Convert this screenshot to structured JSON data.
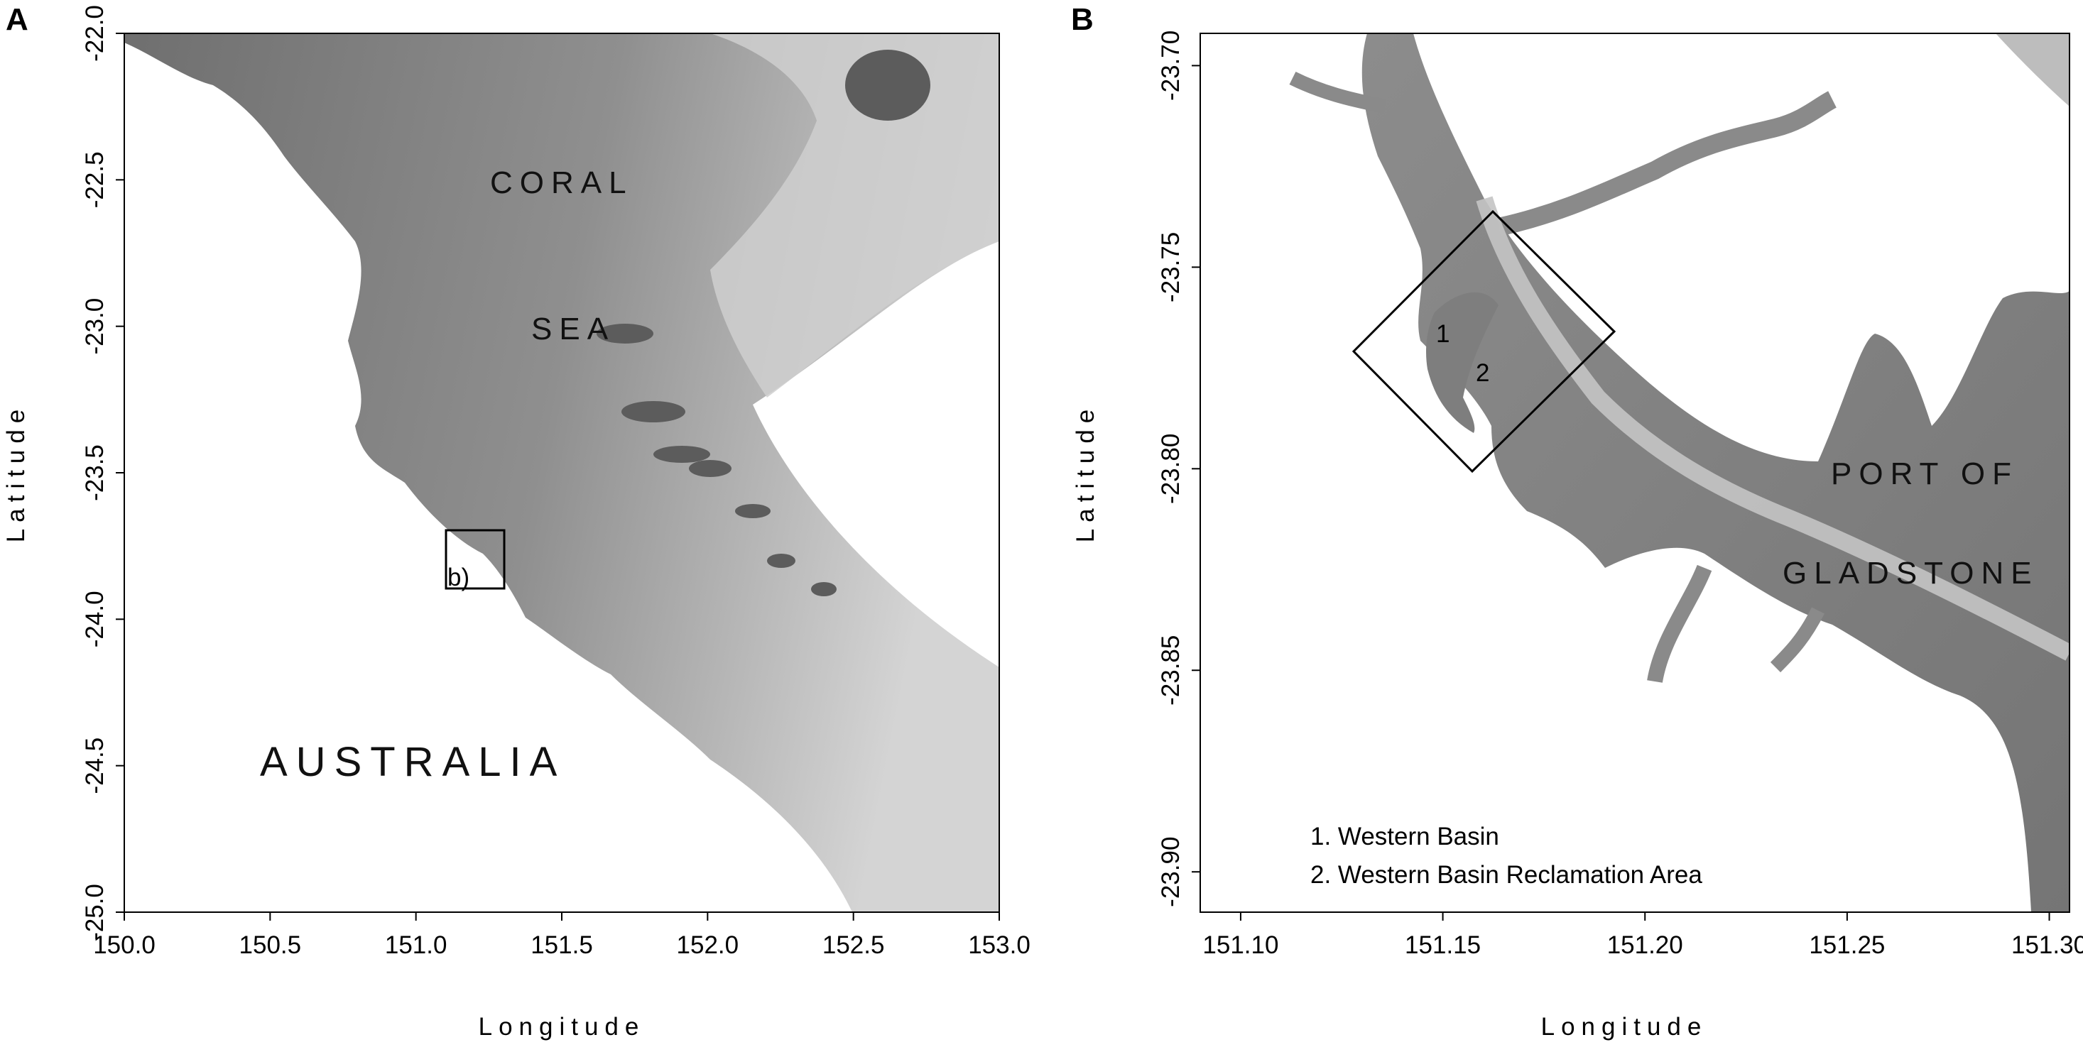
{
  "panels": [
    {
      "letter": "A",
      "xlabel": "Longitude",
      "ylabel": "Latitude",
      "xlim": [
        150.0,
        153.0
      ],
      "ylim": [
        -25.0,
        -22.0
      ],
      "xticks": [
        "150.0",
        "150.5",
        "151.0",
        "151.5",
        "152.0",
        "152.5",
        "153.0"
      ],
      "yticks": [
        "-22.0",
        "-22.5",
        "-23.0",
        "-23.5",
        "-24.0",
        "-24.5",
        "-25.0"
      ],
      "place_labels": [
        "CORAL",
        "SEA",
        "AUSTRALIA"
      ],
      "inset_label": "b)",
      "inset_box": {
        "lon": [
          151.1,
          151.3
        ],
        "lat": [
          -23.9,
          -23.7
        ]
      }
    },
    {
      "letter": "B",
      "xlabel": "Longitude",
      "ylabel": "Latitude",
      "xlim": [
        151.09,
        151.305
      ],
      "ylim": [
        -23.91,
        -23.692
      ],
      "xticks": [
        "151.10",
        "151.15",
        "151.20",
        "151.25",
        "151.30"
      ],
      "yticks": [
        "-23.70",
        "-23.75",
        "-23.80",
        "-23.85",
        "-23.90"
      ],
      "place_labels": [
        "PORT OF",
        "GLADSTONE"
      ],
      "area_markers": [
        "1",
        "2"
      ],
      "legend": [
        "1. Western Basin",
        "2. Western Basin Reclamation Area"
      ]
    }
  ],
  "colors": {
    "land": "#ffffff",
    "deep_water": "#7a7a7a",
    "shallow_water": "#d2d2d2",
    "frame": "#000000"
  }
}
